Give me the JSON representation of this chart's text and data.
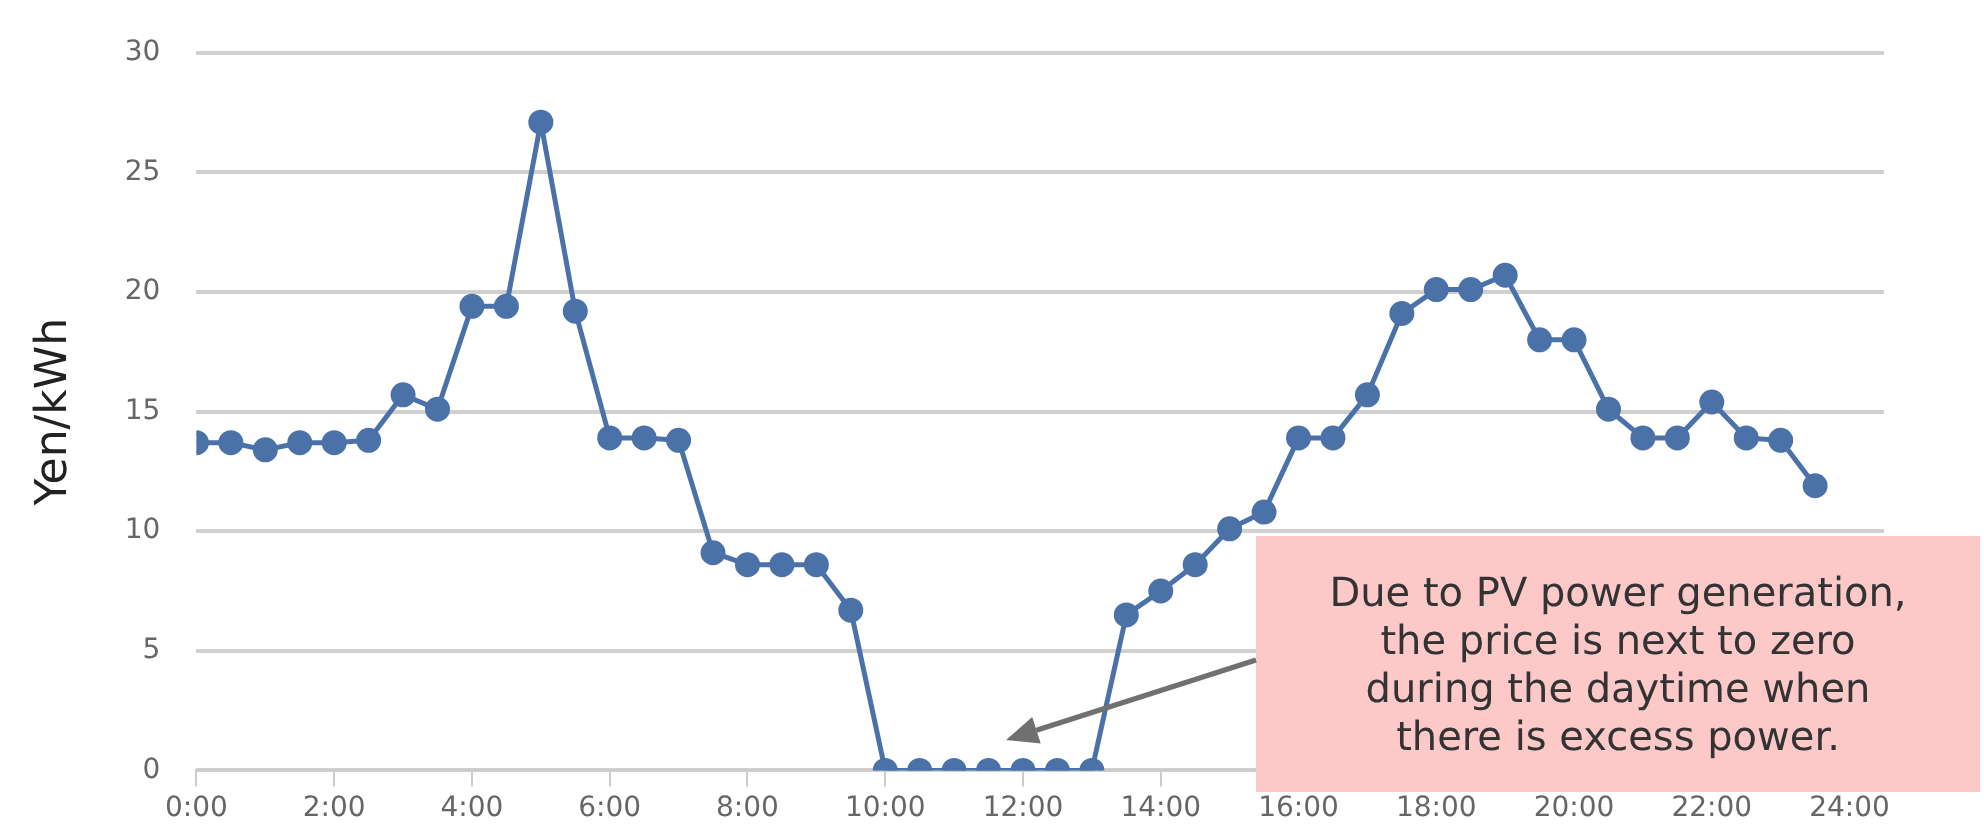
{
  "chart_data": {
    "type": "line",
    "ylabel": "Yen/kWh",
    "x": [
      0,
      0.5,
      1,
      1.5,
      2,
      2.5,
      3,
      3.5,
      4,
      4.5,
      5,
      5.5,
      6,
      6.5,
      7,
      7.5,
      8,
      8.5,
      9,
      9.5,
      10,
      10.5,
      11,
      11.5,
      12,
      12.5,
      13,
      13.5,
      14,
      14.5,
      15,
      15.5,
      16,
      16.5,
      17,
      17.5,
      18,
      18.5,
      19,
      19.5,
      20,
      20.5,
      21,
      21.5,
      22,
      22.5,
      23,
      23.5
    ],
    "series": [
      {
        "color": "#4a72a8",
        "values": [
          13.7,
          13.7,
          13.4,
          13.7,
          13.7,
          13.8,
          15.7,
          15.1,
          19.4,
          19.4,
          27.1,
          19.2,
          13.9,
          13.9,
          13.8,
          9.1,
          8.6,
          8.6,
          8.6,
          6.7,
          0,
          0,
          0,
          0,
          0,
          0,
          0,
          6.5,
          7.5,
          8.6,
          10.1,
          10.8,
          13.9,
          13.9,
          15.7,
          19.1,
          20.1,
          20.1,
          20.7,
          18.0,
          18.0,
          15.1,
          13.9,
          13.9,
          15.4,
          13.9,
          13.8,
          11.9
        ]
      }
    ],
    "xlim": [
      0,
      24.5
    ],
    "xticks": [
      {
        "value": 0,
        "label": "0:00"
      },
      {
        "value": 2,
        "label": "2:00"
      },
      {
        "value": 4,
        "label": "4:00"
      },
      {
        "value": 6,
        "label": "6:00"
      },
      {
        "value": 8,
        "label": "8:00"
      },
      {
        "value": 10,
        "label": "10:00"
      },
      {
        "value": 12,
        "label": "12:00"
      },
      {
        "value": 14,
        "label": "14:00"
      },
      {
        "value": 16,
        "label": "16:00"
      },
      {
        "value": 18,
        "label": "18:00"
      },
      {
        "value": 20,
        "label": "20:00"
      },
      {
        "value": 22,
        "label": "22:00"
      },
      {
        "value": 24,
        "label": "24:00"
      }
    ],
    "ylim": [
      0,
      30
    ],
    "yticks": [
      0,
      5,
      10,
      15,
      20,
      25,
      30
    ],
    "grid": "y",
    "marker": "circle",
    "line_style": "solid",
    "legend": false,
    "annotations": [
      "Due to PV power generation, the price is next to zero during the daytime when there is excess power."
    ]
  }
}
